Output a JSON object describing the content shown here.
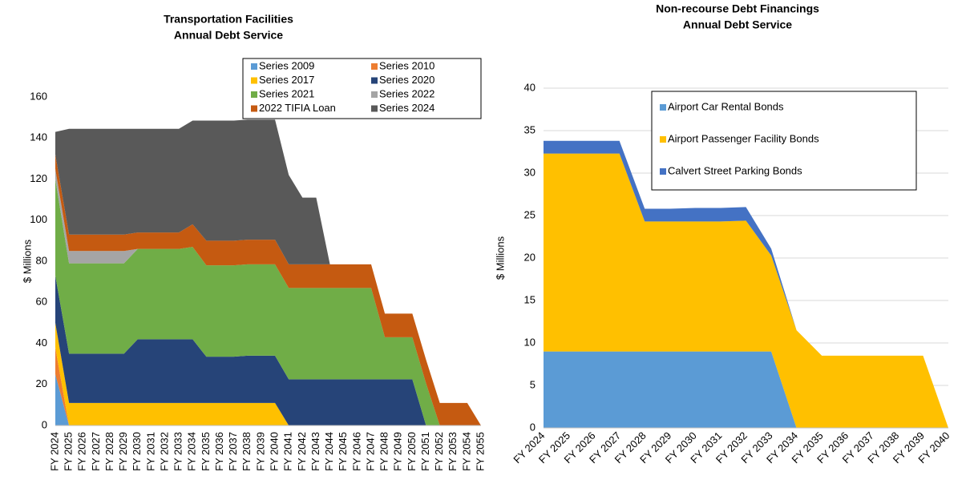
{
  "chart_data": [
    {
      "type": "area",
      "title": [
        "Transportation Facilities",
        "Annual Debt Service"
      ],
      "y_label": "$ Millions",
      "categories": [
        "FY 2024",
        "FY 2025",
        "FY 2026",
        "FY 2027",
        "FY 2028",
        "FY 2029",
        "FY 2030",
        "FY 2031",
        "FY 2032",
        "FY 2033",
        "FY 2034",
        "FY 2035",
        "FY 2036",
        "FY 2037",
        "FY 2038",
        "FY 2039",
        "FY 2040",
        "FY 2041",
        "FY 2042",
        "FY 2043",
        "FY 2044",
        "FY 2045",
        "FY 2046",
        "FY 2047",
        "FY 2048",
        "FY 2049",
        "FY 2050",
        "FY 2051",
        "FY 2052",
        "FY 2053",
        "FY 2054",
        "FY 2055"
      ],
      "series": [
        {
          "name": "Series 2009",
          "color": "#5b9bd5",
          "values": [
            25,
            0,
            0,
            0,
            0,
            0,
            0,
            0,
            0,
            0,
            0,
            0,
            0,
            0,
            0,
            0,
            0,
            0,
            0,
            0,
            0,
            0,
            0,
            0,
            0,
            0,
            0,
            0,
            0,
            0,
            0,
            0
          ]
        },
        {
          "name": "Series 2010",
          "color": "#ed7d31",
          "values": [
            13,
            0,
            0,
            0,
            0,
            0,
            0,
            0,
            0,
            0,
            0,
            0,
            0,
            0,
            0,
            0,
            0,
            0,
            0,
            0,
            0,
            0,
            0,
            0,
            0,
            0,
            0,
            0,
            0,
            0,
            0,
            0
          ]
        },
        {
          "name": "Series 2017",
          "color": "#ffc000",
          "values": [
            12,
            11,
            11,
            11,
            11,
            11,
            11,
            11,
            11,
            11,
            11,
            11,
            11,
            11,
            11,
            11,
            11,
            0,
            0,
            0,
            0,
            0,
            0,
            0,
            0,
            0,
            0,
            0,
            0,
            0,
            0,
            0
          ]
        },
        {
          "name": "Series 2020",
          "color": "#264478",
          "values": [
            23,
            24,
            24,
            24,
            24,
            24,
            31,
            31,
            31,
            31,
            31,
            22.5,
            22.5,
            22.5,
            23,
            23,
            23,
            22.5,
            22.5,
            22.5,
            22.5,
            22.5,
            22.5,
            22.5,
            22.5,
            22.5,
            22.5,
            0,
            0,
            0,
            0,
            0
          ]
        },
        {
          "name": "Series 2021",
          "color": "#70ad47",
          "values": [
            47,
            44,
            44,
            44,
            44,
            44,
            44,
            44,
            44,
            44,
            45,
            44.5,
            44.5,
            44.5,
            44.5,
            44.5,
            44.5,
            44.5,
            44.5,
            44.5,
            44.5,
            44.5,
            44.5,
            44.5,
            20.5,
            20.5,
            20.5,
            20.5,
            0,
            0,
            0,
            0
          ]
        },
        {
          "name": "Series 2022",
          "color": "#a5a5a5",
          "values": [
            5,
            6,
            6,
            6,
            6,
            6,
            0,
            0,
            0,
            0,
            0,
            0,
            0,
            0,
            0,
            0,
            0,
            0,
            0,
            0,
            0,
            0,
            0,
            0,
            0,
            0,
            0,
            0,
            0,
            0,
            0,
            0
          ]
        },
        {
          "name": "2022 TIFIA Loan",
          "color": "#c55a11",
          "values": [
            7,
            8,
            8,
            8,
            8,
            8,
            8,
            8,
            8,
            8,
            11,
            12,
            12,
            12,
            12,
            12,
            12,
            11.5,
            11.5,
            11.5,
            11.5,
            11.5,
            11.5,
            11.5,
            11.5,
            11.5,
            11.5,
            11.5,
            11,
            11,
            11,
            0
          ]
        },
        {
          "name": "Series 2024",
          "color": "#595959",
          "values": [
            11,
            51.5,
            51.5,
            51.5,
            51.5,
            51.5,
            50.5,
            50.5,
            50.5,
            50.5,
            50.5,
            58.5,
            58.5,
            58.5,
            58.5,
            58.5,
            58.5,
            43.5,
            32.5,
            32.5,
            0,
            0,
            0,
            0,
            0,
            0,
            0,
            0,
            0,
            0,
            0,
            0
          ]
        }
      ],
      "ylim": [
        0,
        160
      ],
      "yticks": [
        0,
        20,
        40,
        60,
        80,
        100,
        120,
        140,
        160
      ],
      "grid": false
    },
    {
      "type": "area",
      "title": [
        "Non-recourse Debt Financings",
        "Annual Debt Service"
      ],
      "y_label": "$ Millions",
      "categories": [
        "FY 2024",
        "FY 2025",
        "FY 2026",
        "FY 2027",
        "FY 2028",
        "FY 2029",
        "FY 2030",
        "FY 2031",
        "FY 2032",
        "FY 2033",
        "FY 2034",
        "FY 2035",
        "FY 2036",
        "FY 2037",
        "FY 2038",
        "FY 2039",
        "FY 2040"
      ],
      "series": [
        {
          "name": "Airport Car Rental Bonds",
          "color": "#5b9bd5",
          "values": [
            9,
            9,
            9,
            9,
            9,
            9,
            9,
            9,
            9,
            9,
            0,
            0,
            0,
            0,
            0,
            0,
            0
          ]
        },
        {
          "name": "Airport Passenger Facility Bonds",
          "color": "#ffc000",
          "values": [
            23.3,
            23.3,
            23.3,
            23.3,
            15.3,
            15.3,
            15.3,
            15.3,
            15.4,
            11.3,
            11.5,
            8.5,
            8.5,
            8.5,
            8.5,
            8.5,
            0
          ]
        },
        {
          "name": "Calvert Street Parking Bonds",
          "color": "#4472c4",
          "values": [
            1.5,
            1.5,
            1.5,
            1.5,
            1.5,
            1.5,
            1.6,
            1.6,
            1.6,
            0.8,
            0,
            0,
            0,
            0,
            0,
            0,
            0
          ]
        }
      ],
      "ylim": [
        0,
        40
      ],
      "yticks": [
        0,
        5,
        10,
        15,
        20,
        25,
        30,
        35,
        40
      ],
      "grid": true
    }
  ]
}
